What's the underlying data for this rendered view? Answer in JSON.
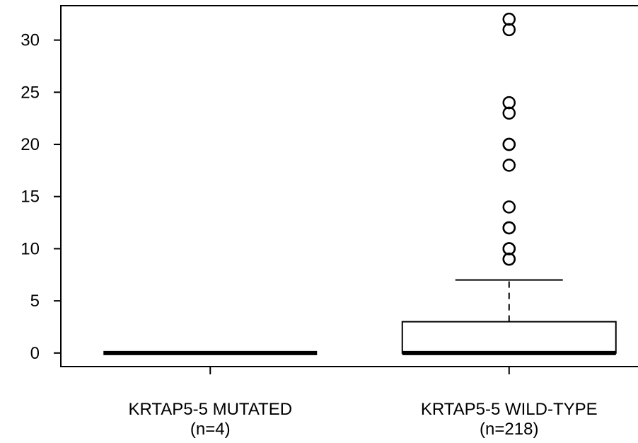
{
  "chart_data": {
    "type": "boxplot",
    "title": "",
    "xlabel": "",
    "ylabel": "",
    "ylim": [
      -1.3,
      33.3
    ],
    "yticks": [
      0,
      5,
      10,
      15,
      20,
      25,
      30
    ],
    "grid": false,
    "categories": [
      {
        "label": "KRTAP5-5 MUTATED",
        "n_label": "(n=4)"
      },
      {
        "label": "KRTAP5-5 WILD-TYPE",
        "n_label": "(n=218)"
      }
    ],
    "boxes": [
      {
        "min": 0,
        "q1": 0,
        "median": 0,
        "q3": 0,
        "max": 0,
        "outliers": []
      },
      {
        "min": 0,
        "q1": 0,
        "median": 0,
        "q3": 3,
        "max": 7,
        "outliers": [
          9,
          9,
          10,
          10,
          12,
          12,
          14,
          18,
          20,
          20,
          23,
          24,
          31,
          32
        ]
      }
    ]
  }
}
